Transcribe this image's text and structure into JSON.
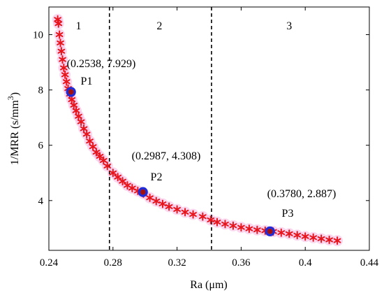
{
  "chart_data": {
    "type": "scatter",
    "xlabel": "Ra (μm)",
    "ylabel": "1/MRR (s/mm³)",
    "ylabel_parts": {
      "main": "1/MRR (s/mm",
      "sup": "3",
      "close": ")"
    },
    "xlim": [
      0.24,
      0.44
    ],
    "ylim": [
      2.2,
      11.0
    ],
    "xticks": [
      0.24,
      0.28,
      0.32,
      0.36,
      0.4,
      0.44
    ],
    "xtick_labels": [
      "0.24",
      "0.28",
      "0.32",
      "0.36",
      "0.4",
      "0.44"
    ],
    "yticks": [
      4,
      6,
      8,
      10
    ],
    "ytick_labels": [
      "4",
      "6",
      "8",
      "10"
    ],
    "grid": false,
    "series": [
      {
        "x": [
          0.2455,
          0.246,
          0.2466,
          0.2472,
          0.2478,
          0.2485,
          0.2493,
          0.2501,
          0.251,
          0.252,
          0.2531,
          0.2543,
          0.2556,
          0.257,
          0.2585,
          0.2601,
          0.2618,
          0.2636,
          0.2655,
          0.2675,
          0.2696,
          0.2718,
          0.2741,
          0.2765,
          0.28,
          0.283,
          0.286,
          0.289,
          0.292,
          0.2955,
          0.299,
          0.303,
          0.307,
          0.311,
          0.315,
          0.32,
          0.325,
          0.33,
          0.336,
          0.341,
          0.345,
          0.35,
          0.355,
          0.36,
          0.365,
          0.37,
          0.375,
          0.38,
          0.385,
          0.39,
          0.395,
          0.4,
          0.405,
          0.41,
          0.415,
          0.42
        ],
        "y": [
          10.55,
          10.4,
          10.0,
          9.7,
          9.4,
          9.1,
          8.8,
          8.55,
          8.3,
          8.05,
          7.85,
          7.65,
          7.45,
          7.25,
          7.05,
          6.85,
          6.6,
          6.4,
          6.15,
          5.95,
          5.75,
          5.6,
          5.45,
          5.25,
          5.0,
          4.85,
          4.7,
          4.55,
          4.45,
          4.35,
          4.25,
          4.1,
          3.98,
          3.88,
          3.78,
          3.68,
          3.58,
          3.5,
          3.42,
          3.3,
          3.22,
          3.15,
          3.09,
          3.03,
          2.98,
          2.94,
          2.91,
          2.88,
          2.84,
          2.8,
          2.75,
          2.7,
          2.66,
          2.62,
          2.58,
          2.55
        ]
      }
    ],
    "regions": [
      {
        "label": "1",
        "label_x": 0.2585
      },
      {
        "label": "2",
        "label_x": 0.309
      },
      {
        "label": "3",
        "label_x": 0.39
      }
    ],
    "dividers_x": [
      0.2778,
      0.3415
    ],
    "highlighted_points": [
      {
        "name": "P1",
        "x": 0.2538,
        "y": 7.929,
        "label": "(0.2538, 7.929)"
      },
      {
        "name": "P2",
        "x": 0.2987,
        "y": 4.308,
        "label": "(0.2987, 4.308)"
      },
      {
        "name": "P3",
        "x": 0.378,
        "y": 2.887,
        "label": "(0.3780, 2.887)"
      }
    ],
    "colors": {
      "markers": "#e8141c",
      "glow": "#f6b8e2",
      "highlight_ring": "#1f2bd6"
    }
  }
}
